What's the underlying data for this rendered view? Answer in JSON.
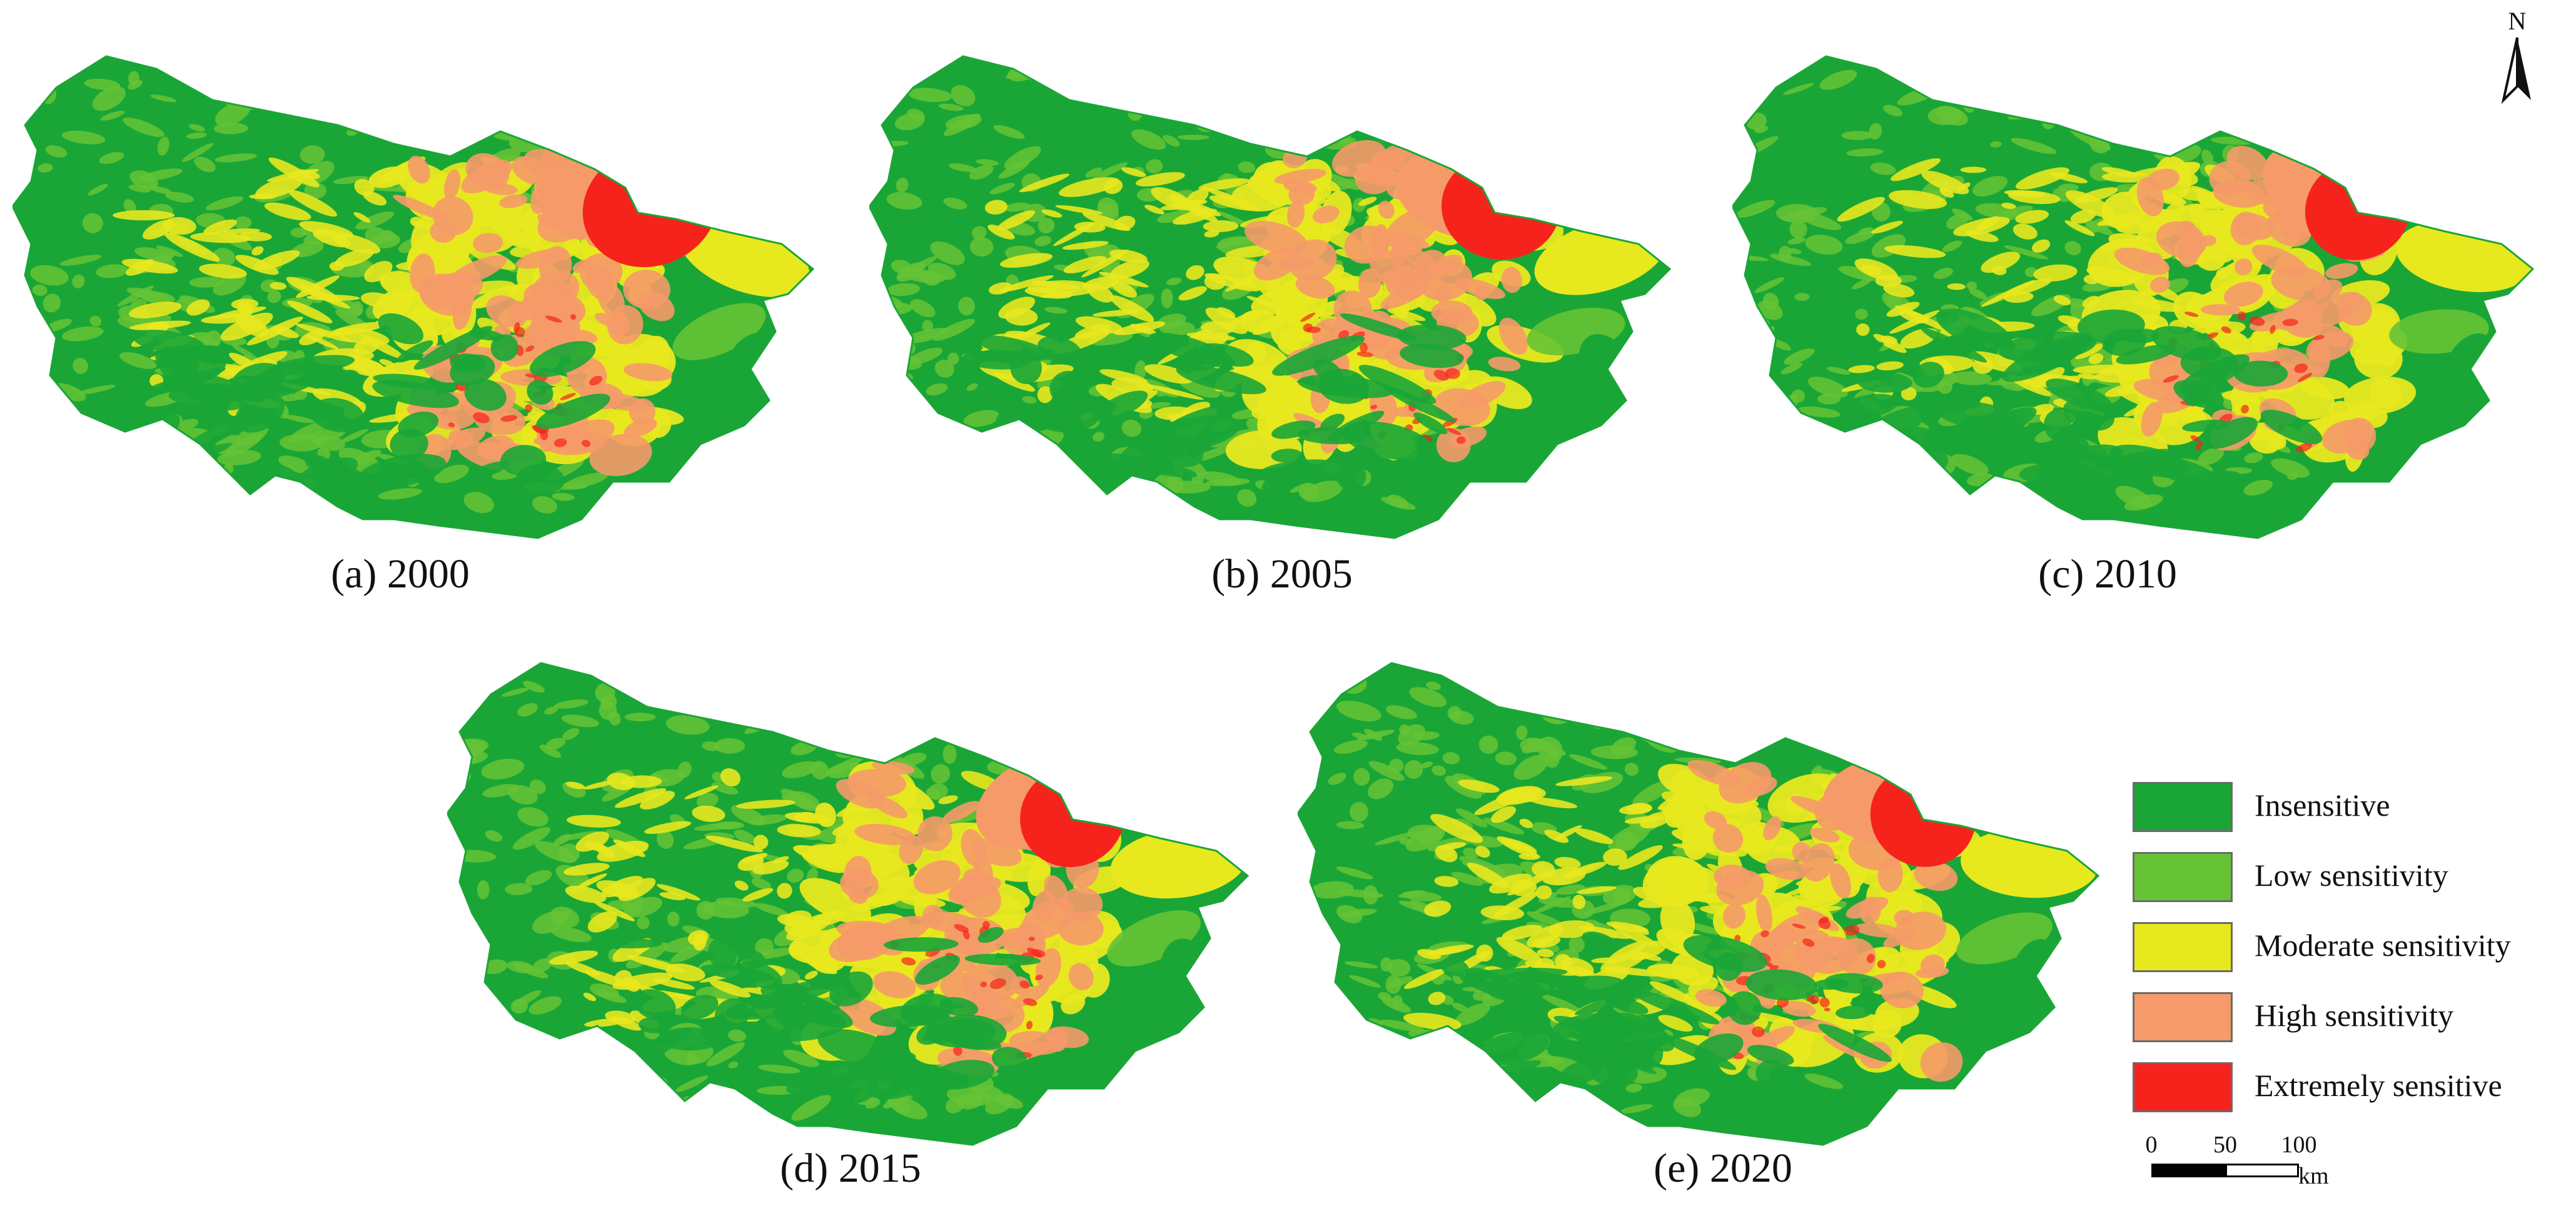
{
  "panels": [
    {
      "id": "a",
      "caption": "(a) 2000"
    },
    {
      "id": "b",
      "caption": "(b) 2005"
    },
    {
      "id": "c",
      "caption": "(c) 2010"
    },
    {
      "id": "d",
      "caption": "(d) 2015"
    },
    {
      "id": "e",
      "caption": "(e) 2020"
    }
  ],
  "north_arrow": {
    "label": "N"
  },
  "legend": {
    "items": [
      {
        "label": "Insensitive",
        "color": "#1aa637"
      },
      {
        "label": "Low sensitivity",
        "color": "#66c335"
      },
      {
        "label": "Moderate sensitivity",
        "color": "#e8e81f"
      },
      {
        "label": "High sensitivity",
        "color": "#f59a68"
      },
      {
        "label": "Extremely sensitive",
        "color": "#f5231c"
      }
    ]
  },
  "scale_bar": {
    "ticks": [
      "0",
      "50",
      "100"
    ],
    "unit": "km"
  }
}
